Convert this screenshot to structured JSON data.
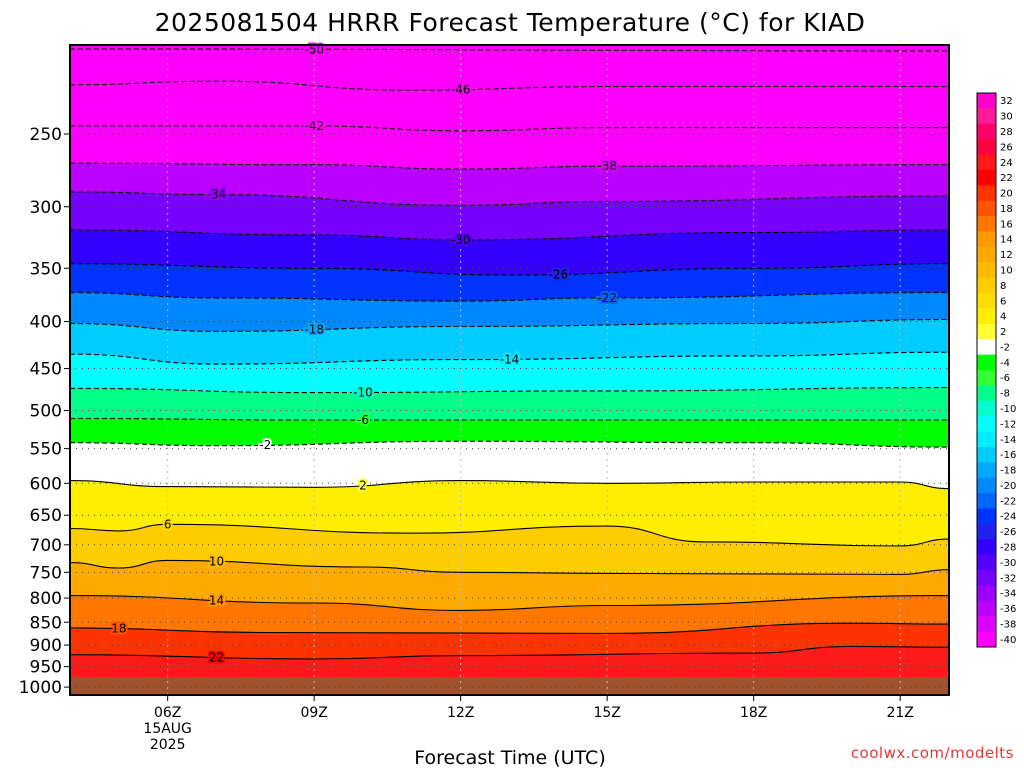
{
  "title": "2025081504 HRRR Forecast Temperature (°C) for KIAD",
  "credit": "coolwx.com/modelts",
  "chart_data": {
    "type": "heatmap",
    "title": "2025081504 HRRR Forecast Temperature (°C) for KIAD",
    "xlabel": "Forecast Time (UTC)",
    "ylabel": "",
    "x_axis": {
      "range_hours": [
        4,
        22
      ],
      "ticks": [
        {
          "hour": 6,
          "lines": [
            "06Z",
            "15AUG",
            "2025"
          ]
        },
        {
          "hour": 9,
          "lines": [
            "09Z"
          ]
        },
        {
          "hour": 12,
          "lines": [
            "12Z"
          ]
        },
        {
          "hour": 15,
          "lines": [
            "15Z"
          ]
        },
        {
          "hour": 18,
          "lines": [
            "18Z"
          ]
        },
        {
          "hour": 21,
          "lines": [
            "21Z"
          ]
        }
      ]
    },
    "y_axis": {
      "scale": "log",
      "range_hpa": [
        1020,
        200
      ],
      "ticks": [
        250,
        300,
        350,
        400,
        450,
        500,
        550,
        600,
        650,
        700,
        750,
        800,
        850,
        900,
        950,
        1000
      ]
    },
    "colorbar": {
      "levels": [
        32,
        30,
        28,
        26,
        24,
        22,
        20,
        18,
        16,
        14,
        12,
        10,
        8,
        6,
        4,
        2,
        -2,
        -4,
        -6,
        -8,
        -10,
        -12,
        -14,
        -16,
        -18,
        -20,
        -22,
        -24,
        -26,
        -28,
        -30,
        -32,
        -34,
        -36,
        -38,
        -40
      ],
      "colors": [
        "#ff00cc",
        "#ff1a99",
        "#ff0066",
        "#ff0040",
        "#ff1a1a",
        "#ff0000",
        "#ff3300",
        "#ff5500",
        "#ff7700",
        "#ff9900",
        "#ffaa00",
        "#ffbb00",
        "#ffcc00",
        "#ffdd00",
        "#ffee00",
        "#ffff33",
        "#ffffff",
        "#00ff00",
        "#33ff33",
        "#00ff88",
        "#00ffcc",
        "#00ffff",
        "#00eeff",
        "#00ccff",
        "#00aaff",
        "#0088ff",
        "#0066ff",
        "#0033ff",
        "#2222ee",
        "#3300ff",
        "#5500ff",
        "#7700ff",
        "#9900ff",
        "#bb00ff",
        "#dd00ff",
        "#ff00ff"
      ]
    },
    "contours": [
      {
        "value": -50,
        "points": [
          [
            4,
            202
          ],
          [
            22,
            203
          ]
        ],
        "label_at": 9
      },
      {
        "value": -46,
        "points": [
          [
            4,
            221
          ],
          [
            7,
            219
          ],
          [
            11,
            224
          ],
          [
            15,
            222
          ],
          [
            22,
            222
          ]
        ],
        "label_at": 12
      },
      {
        "value": -42,
        "points": [
          [
            4,
            245
          ],
          [
            9,
            245
          ],
          [
            12,
            248
          ],
          [
            15,
            246
          ],
          [
            22,
            246
          ]
        ],
        "label_at": 9
      },
      {
        "value": -38,
        "points": [
          [
            4,
            269
          ],
          [
            9,
            270
          ],
          [
            12,
            273
          ],
          [
            15,
            271
          ],
          [
            22,
            270
          ]
        ],
        "label_at": 15
      },
      {
        "value": -34,
        "points": [
          [
            4,
            289
          ],
          [
            7,
            291
          ],
          [
            12,
            299
          ],
          [
            15,
            296
          ],
          [
            22,
            292
          ]
        ],
        "label_at": 7
      },
      {
        "value": -30,
        "points": [
          [
            4,
            318
          ],
          [
            9,
            322
          ],
          [
            12,
            326
          ],
          [
            18,
            320
          ],
          [
            22,
            318
          ]
        ],
        "label_at": 12
      },
      {
        "value": -26,
        "points": [
          [
            4,
            346
          ],
          [
            9,
            350
          ],
          [
            13,
            356
          ],
          [
            18,
            350
          ],
          [
            22,
            346
          ]
        ],
        "label_at": 14
      },
      {
        "value": -22,
        "points": [
          [
            4,
            372
          ],
          [
            7,
            377
          ],
          [
            12,
            380
          ],
          [
            15,
            377
          ],
          [
            22,
            372
          ]
        ],
        "label_at": 15
      },
      {
        "value": -18,
        "points": [
          [
            4,
            402
          ],
          [
            7,
            410
          ],
          [
            12,
            405
          ],
          [
            18,
            402
          ],
          [
            22,
            398
          ]
        ],
        "label_at": 9
      },
      {
        "value": -14,
        "points": [
          [
            4,
            434
          ],
          [
            7,
            445
          ],
          [
            12,
            440
          ],
          [
            18,
            436
          ],
          [
            22,
            432
          ]
        ],
        "label_at": 13
      },
      {
        "value": -10,
        "points": [
          [
            4,
            473
          ],
          [
            9,
            478
          ],
          [
            15,
            476
          ],
          [
            22,
            472
          ]
        ],
        "label_at": 10
      },
      {
        "value": -6,
        "points": [
          [
            4,
            510
          ],
          [
            9,
            512
          ],
          [
            15,
            512
          ],
          [
            22,
            512
          ]
        ],
        "label_at": 10
      },
      {
        "value": -2,
        "points": [
          [
            4,
            542
          ],
          [
            7,
            546
          ],
          [
            12,
            540
          ],
          [
            18,
            542
          ],
          [
            22,
            548
          ]
        ],
        "label_at": 8
      },
      {
        "value": 2,
        "points": [
          [
            4,
            596
          ],
          [
            6,
            605
          ],
          [
            9,
            606
          ],
          [
            12,
            596
          ],
          [
            15,
            600
          ],
          [
            18,
            598
          ],
          [
            21,
            598
          ],
          [
            22,
            608
          ]
        ],
        "label_at": 10
      },
      {
        "value": 6,
        "points": [
          [
            4,
            672
          ],
          [
            5,
            676
          ],
          [
            6,
            665
          ],
          [
            11,
            680
          ],
          [
            15,
            668
          ],
          [
            17,
            695
          ],
          [
            21,
            702
          ],
          [
            22,
            690
          ]
        ],
        "label_at": 6
      },
      {
        "value": 10,
        "points": [
          [
            4,
            732
          ],
          [
            5,
            742
          ],
          [
            6,
            728
          ],
          [
            10,
            740
          ],
          [
            12,
            750
          ],
          [
            15,
            752
          ],
          [
            21,
            754
          ],
          [
            22,
            745
          ]
        ],
        "label_at": 7
      },
      {
        "value": 14,
        "points": [
          [
            4,
            795
          ],
          [
            9,
            810
          ],
          [
            12,
            825
          ],
          [
            15,
            815
          ],
          [
            22,
            795
          ]
        ],
        "label_at": 7
      },
      {
        "value": 18,
        "points": [
          [
            4,
            862
          ],
          [
            8,
            872
          ],
          [
            15,
            874
          ],
          [
            20,
            852
          ],
          [
            22,
            854
          ]
        ],
        "label_at": 5
      },
      {
        "value": 22,
        "points": [
          [
            4,
            922
          ],
          [
            9,
            932
          ],
          [
            12,
            924
          ],
          [
            18,
            918
          ],
          [
            20,
            903
          ],
          [
            22,
            905
          ]
        ],
        "label_at": 7
      }
    ]
  }
}
